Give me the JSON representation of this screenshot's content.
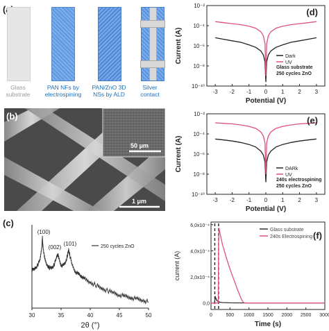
{
  "panel_a": {
    "label": "(a)",
    "items": [
      {
        "caption": "Glass substrate",
        "caption_color": "#9a9a9a"
      },
      {
        "caption": "PAN NFs by electrospining",
        "caption_color": "#1d6fb8"
      },
      {
        "caption": "PAN/ZnO 3D NSs by ALD",
        "caption_color": "#1d6fb8"
      },
      {
        "caption": "Silver contact",
        "caption_color": "#1d6fb8"
      }
    ]
  },
  "panel_b": {
    "label": "(b)",
    "inset_scale": "50 μm",
    "main_scale": "1 μm"
  },
  "chart_data": [
    {
      "id": "c",
      "type": "line",
      "label": "(c)",
      "xlabel": "2θ (°)",
      "ylabel": "",
      "xlim": [
        30,
        50
      ],
      "xticks": [
        30,
        35,
        40,
        45,
        50
      ],
      "legend": "250 cycles ZnO",
      "legend_position": "top-right",
      "peaks": [
        {
          "x": 31.8,
          "label": "(100)"
        },
        {
          "x": 34.4,
          "label": "(002)"
        },
        {
          "x": 36.3,
          "label": "(101)"
        }
      ],
      "series": [
        {
          "color": "#333333",
          "x": [
            30,
            30.5,
            31,
            31.4,
            31.7,
            31.8,
            31.9,
            32.2,
            32.6,
            33.0,
            33.4,
            33.8,
            34.2,
            34.4,
            34.6,
            35.0,
            35.4,
            35.8,
            36.1,
            36.3,
            36.5,
            36.9,
            37.5,
            38.0,
            38.5,
            39.0,
            40.0,
            41.0,
            42.0,
            43.0,
            44.0,
            45.0,
            46.0,
            47.0,
            48.0,
            49.0,
            50.0
          ],
          "y": [
            0.5,
            0.53,
            0.58,
            0.66,
            0.85,
            0.97,
            0.85,
            0.66,
            0.58,
            0.54,
            0.54,
            0.58,
            0.68,
            0.75,
            0.68,
            0.58,
            0.57,
            0.63,
            0.72,
            0.8,
            0.72,
            0.58,
            0.48,
            0.45,
            0.42,
            0.38,
            0.33,
            0.29,
            0.24,
            0.21,
            0.18,
            0.15,
            0.13,
            0.11,
            0.09,
            0.07,
            0.05
          ]
        }
      ]
    },
    {
      "id": "d",
      "type": "line",
      "label": "(d)",
      "xlabel": "Potential (V)",
      "ylabel": "Current (A)",
      "xlim": [
        -3.5,
        3.5
      ],
      "ylim": [
        1e-10,
        0.01
      ],
      "yscale": "log",
      "xticks": [
        -3,
        -2,
        -1,
        0,
        1,
        2,
        3
      ],
      "yticks": [
        "10⁻²",
        "10⁻⁴",
        "10⁻⁶",
        "10⁻⁸",
        "10⁻¹⁰"
      ],
      "ytick_values": [
        -2,
        -4,
        -6,
        -8,
        -10
      ],
      "legend": [
        "Dark",
        "UV"
      ],
      "legend_position": "bottom-right",
      "annotation": [
        "Glass substrate",
        "250 cycles  ZnO"
      ],
      "series": [
        {
          "name": "Dark",
          "color": "#222222",
          "x": [
            -3,
            -2.5,
            -2,
            -1.5,
            -1,
            -0.6,
            -0.3,
            -0.15,
            -0.05,
            0,
            0.05,
            0.15,
            0.3,
            0.6,
            1,
            1.5,
            2,
            2.5,
            3
          ],
          "log10y": [
            -5.2,
            -5.35,
            -5.5,
            -5.65,
            -5.9,
            -6.15,
            -6.5,
            -6.9,
            -7.6,
            -9.6,
            -7.6,
            -6.9,
            -6.5,
            -6.15,
            -5.9,
            -5.65,
            -5.5,
            -5.35,
            -5.2
          ]
        },
        {
          "name": "UV",
          "color": "#e0507a",
          "x": [
            -3,
            -2.5,
            -2,
            -1.5,
            -1,
            -0.6,
            -0.3,
            -0.15,
            -0.05,
            0,
            0.05,
            0.15,
            0.3,
            0.6,
            1,
            1.5,
            2,
            2.5,
            3
          ],
          "log10y": [
            -3.6,
            -3.7,
            -3.8,
            -3.9,
            -4.05,
            -4.25,
            -4.6,
            -5.0,
            -5.8,
            -9.0,
            -5.8,
            -5.0,
            -4.6,
            -4.25,
            -4.05,
            -3.9,
            -3.8,
            -3.7,
            -3.6
          ]
        }
      ]
    },
    {
      "id": "e",
      "type": "line",
      "label": "(e)",
      "xlabel": "Potential (V)",
      "ylabel": "Current (A)",
      "xlim": [
        -3.5,
        3.5
      ],
      "ylim": [
        1e-10,
        0.01
      ],
      "yscale": "log",
      "xticks": [
        -3,
        -2,
        -1,
        0,
        1,
        2,
        3
      ],
      "yticks": [
        "10⁻²",
        "10⁻⁴",
        "10⁻⁶",
        "10⁻⁸",
        "10⁻¹⁰"
      ],
      "ytick_values": [
        -2,
        -4,
        -6,
        -8,
        -10
      ],
      "legend": [
        "DARk",
        "UV"
      ],
      "legend_position": "bottom-right",
      "annotation": [
        "240s  electrospining",
        "250 cycles ZnO"
      ],
      "series": [
        {
          "name": "DARk",
          "color": "#222222",
          "x": [
            -3,
            -2.5,
            -2,
            -1.5,
            -1,
            -0.6,
            -0.3,
            -0.15,
            -0.05,
            0,
            0.05,
            0.15,
            0.3,
            0.6,
            1,
            1.5,
            2,
            2.5,
            3
          ],
          "log10y": [
            -4.5,
            -4.6,
            -4.7,
            -4.85,
            -5.05,
            -5.3,
            -5.7,
            -6.1,
            -6.8,
            -8.8,
            -6.8,
            -6.1,
            -5.7,
            -5.3,
            -5.05,
            -4.85,
            -4.7,
            -4.6,
            -4.5
          ]
        },
        {
          "name": "UV",
          "color": "#e0507a",
          "x": [
            -3,
            -2.5,
            -2,
            -1.5,
            -1,
            -0.6,
            -0.3,
            -0.15,
            -0.05,
            0,
            0.05,
            0.15,
            0.3,
            0.6,
            1,
            1.5,
            2,
            2.5,
            3
          ],
          "log10y": [
            -2.9,
            -2.95,
            -3.0,
            -3.1,
            -3.25,
            -3.45,
            -3.8,
            -4.2,
            -4.9,
            -8.0,
            -4.9,
            -4.2,
            -3.8,
            -3.45,
            -3.25,
            -3.1,
            -3.0,
            -2.95,
            -2.9
          ]
        }
      ]
    },
    {
      "id": "f",
      "type": "line",
      "label": "(f)",
      "xlabel": "Time (s)",
      "ylabel": "current (A)",
      "xlim": [
        0,
        3000
      ],
      "ylim": [
        -5e-05,
        0.00062
      ],
      "xticks": [
        0,
        500,
        1000,
        1500,
        2000,
        2500,
        3000
      ],
      "yticks": [
        "0,0",
        "2,0x10⁻⁴",
        "4,0x10⁻⁴",
        "6,0x10⁻⁴"
      ],
      "ytick_values": [
        0,
        0.0002,
        0.0004,
        0.0006
      ],
      "legend": [
        "Glass substrate",
        "240s Electrospining"
      ],
      "legend_position": "top-right",
      "markers": [
        100,
        200
      ],
      "series": [
        {
          "name": "Glass substrate",
          "color": "#333333",
          "x": [
            0,
            90,
            100,
            115,
            150,
            200,
            300,
            500,
            1000,
            3000
          ],
          "y": [
            0,
            0,
            2e-05,
            4.5e-05,
            2e-05,
            8e-06,
            3e-06,
            1e-06,
            0,
            0
          ]
        },
        {
          "name": "240s Electrospining",
          "color": "#e0507a",
          "x": [
            0,
            190,
            200,
            210,
            220,
            240,
            300,
            400,
            500,
            600,
            700,
            800,
            850,
            900,
            1000,
            3000
          ],
          "y": [
            0,
            0,
            0.00045,
            0.000575,
            0.00056,
            0.00053,
            0.00045,
            0.00035,
            0.00026,
            0.00018,
            0.0001,
            3e-05,
            5e-06,
            0,
            0,
            0
          ]
        }
      ]
    }
  ]
}
